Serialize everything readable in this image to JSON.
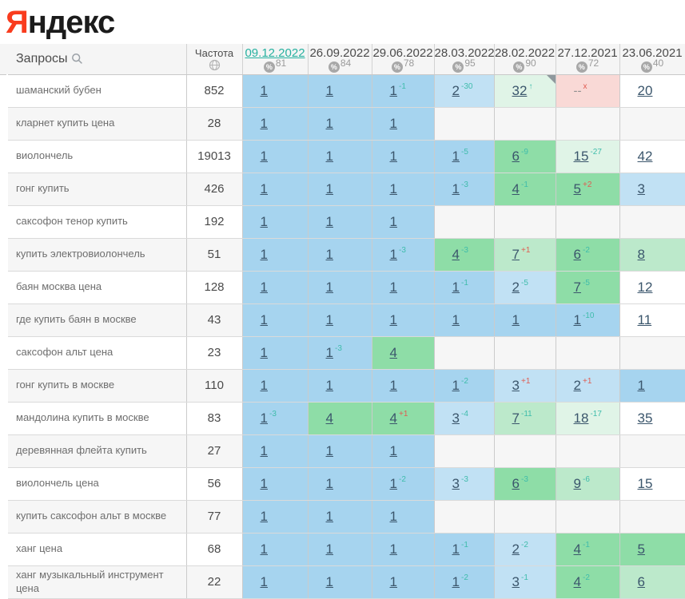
{
  "logo": {
    "first_letter": "Я",
    "rest": "ндекс"
  },
  "header": {
    "queries_label": "Запросы",
    "frequency_label": "Частота",
    "columns": [
      {
        "date": "09.12.2022",
        "quality": "81",
        "active": true
      },
      {
        "date": "26.09.2022",
        "quality": "84",
        "active": false
      },
      {
        "date": "29.06.2022",
        "quality": "78",
        "active": false
      },
      {
        "date": "28.03.2022",
        "quality": "95",
        "active": false
      },
      {
        "date": "28.02.2022",
        "quality": "90",
        "active": false
      },
      {
        "date": "27.12.2021",
        "quality": "72",
        "active": false
      },
      {
        "date": "23.06.2021",
        "quality": "40",
        "active": false
      }
    ]
  },
  "tones": {
    "b1": "#a6d4ef",
    "b2": "#c1e1f4",
    "g1": "#8edda7",
    "g2": "#bce9cb",
    "g3": "#e0f4e7",
    "w": "#ffffff",
    "e": "#f6f6f6",
    "r": "#f9d9d6"
  },
  "sup_colors": {
    "up": "#3fbcab",
    "down": "#e05c51"
  },
  "rows": [
    {
      "query": "шаманский бубен",
      "frequency": "852",
      "cells": [
        {
          "pos": "1",
          "tone": "b1"
        },
        {
          "pos": "1",
          "tone": "b1"
        },
        {
          "pos": "1",
          "tone": "b1",
          "sup": "-1",
          "dir": "up"
        },
        {
          "pos": "2",
          "tone": "b2",
          "sup": "-30",
          "dir": "up"
        },
        {
          "pos": "32",
          "tone": "g3",
          "sup": "↑",
          "dir": "up",
          "fold": true
        },
        {
          "pos": "--",
          "tone": "r",
          "sup": "x",
          "dir": "down",
          "static": true
        },
        {
          "pos": "20",
          "tone": "w"
        }
      ]
    },
    {
      "query": "кларнет купить цена",
      "frequency": "28",
      "cells": [
        {
          "pos": "1",
          "tone": "b1"
        },
        {
          "pos": "1",
          "tone": "b1"
        },
        {
          "pos": "1",
          "tone": "b1"
        },
        {
          "tone": "e"
        },
        {
          "tone": "e"
        },
        {
          "tone": "e"
        },
        {
          "tone": "e"
        }
      ]
    },
    {
      "query": "виолончель",
      "frequency": "19013",
      "cells": [
        {
          "pos": "1",
          "tone": "b1"
        },
        {
          "pos": "1",
          "tone": "b1"
        },
        {
          "pos": "1",
          "tone": "b1"
        },
        {
          "pos": "1",
          "tone": "b1",
          "sup": "-5",
          "dir": "up"
        },
        {
          "pos": "6",
          "tone": "g1",
          "sup": "-9",
          "dir": "up"
        },
        {
          "pos": "15",
          "tone": "g3",
          "sup": "-27",
          "dir": "up"
        },
        {
          "pos": "42",
          "tone": "w"
        }
      ]
    },
    {
      "query": "гонг купить",
      "frequency": "426",
      "cells": [
        {
          "pos": "1",
          "tone": "b1"
        },
        {
          "pos": "1",
          "tone": "b1"
        },
        {
          "pos": "1",
          "tone": "b1"
        },
        {
          "pos": "1",
          "tone": "b1",
          "sup": "-3",
          "dir": "up"
        },
        {
          "pos": "4",
          "tone": "g1",
          "sup": "-1",
          "dir": "up"
        },
        {
          "pos": "5",
          "tone": "g1",
          "sup": "+2",
          "dir": "down"
        },
        {
          "pos": "3",
          "tone": "b2"
        }
      ]
    },
    {
      "query": "саксофон тенор купить",
      "frequency": "192",
      "cells": [
        {
          "pos": "1",
          "tone": "b1"
        },
        {
          "pos": "1",
          "tone": "b1"
        },
        {
          "pos": "1",
          "tone": "b1"
        },
        {
          "tone": "e"
        },
        {
          "tone": "e"
        },
        {
          "tone": "e"
        },
        {
          "tone": "e"
        }
      ]
    },
    {
      "query": "купить электровиолончель",
      "frequency": "51",
      "cells": [
        {
          "pos": "1",
          "tone": "b1"
        },
        {
          "pos": "1",
          "tone": "b1"
        },
        {
          "pos": "1",
          "tone": "b1",
          "sup": "-3",
          "dir": "up"
        },
        {
          "pos": "4",
          "tone": "g1",
          "sup": "-3",
          "dir": "up"
        },
        {
          "pos": "7",
          "tone": "g2",
          "sup": "+1",
          "dir": "down"
        },
        {
          "pos": "6",
          "tone": "g1",
          "sup": "-2",
          "dir": "up"
        },
        {
          "pos": "8",
          "tone": "g2"
        }
      ]
    },
    {
      "query": "баян москва цена",
      "frequency": "128",
      "cells": [
        {
          "pos": "1",
          "tone": "b1"
        },
        {
          "pos": "1",
          "tone": "b1"
        },
        {
          "pos": "1",
          "tone": "b1"
        },
        {
          "pos": "1",
          "tone": "b1",
          "sup": "-1",
          "dir": "up"
        },
        {
          "pos": "2",
          "tone": "b2",
          "sup": "-5",
          "dir": "up"
        },
        {
          "pos": "7",
          "tone": "g1",
          "sup": "-5",
          "dir": "up"
        },
        {
          "pos": "12",
          "tone": "w"
        }
      ]
    },
    {
      "query": "где купить баян в москве",
      "frequency": "43",
      "cells": [
        {
          "pos": "1",
          "tone": "b1"
        },
        {
          "pos": "1",
          "tone": "b1"
        },
        {
          "pos": "1",
          "tone": "b1"
        },
        {
          "pos": "1",
          "tone": "b1"
        },
        {
          "pos": "1",
          "tone": "b1"
        },
        {
          "pos": "1",
          "tone": "b1",
          "sup": "-10",
          "dir": "up"
        },
        {
          "pos": "11",
          "tone": "w"
        }
      ]
    },
    {
      "query": "саксофон альт цена",
      "frequency": "23",
      "cells": [
        {
          "pos": "1",
          "tone": "b1"
        },
        {
          "pos": "1",
          "tone": "b1",
          "sup": "-3",
          "dir": "up"
        },
        {
          "pos": "4",
          "tone": "g1"
        },
        {
          "tone": "e"
        },
        {
          "tone": "e"
        },
        {
          "tone": "e"
        },
        {
          "tone": "e"
        }
      ]
    },
    {
      "query": "гонг купить в москве",
      "frequency": "110",
      "cells": [
        {
          "pos": "1",
          "tone": "b1"
        },
        {
          "pos": "1",
          "tone": "b1"
        },
        {
          "pos": "1",
          "tone": "b1"
        },
        {
          "pos": "1",
          "tone": "b1",
          "sup": "-2",
          "dir": "up"
        },
        {
          "pos": "3",
          "tone": "b2",
          "sup": "+1",
          "dir": "down"
        },
        {
          "pos": "2",
          "tone": "b2",
          "sup": "+1",
          "dir": "down"
        },
        {
          "pos": "1",
          "tone": "b1"
        }
      ]
    },
    {
      "query": "мандолина купить в москве",
      "frequency": "83",
      "cells": [
        {
          "pos": "1",
          "tone": "b1",
          "sup": "-3",
          "dir": "up"
        },
        {
          "pos": "4",
          "tone": "g1"
        },
        {
          "pos": "4",
          "tone": "g1",
          "sup": "+1",
          "dir": "down"
        },
        {
          "pos": "3",
          "tone": "b2",
          "sup": "-4",
          "dir": "up"
        },
        {
          "pos": "7",
          "tone": "g2",
          "sup": "-11",
          "dir": "up"
        },
        {
          "pos": "18",
          "tone": "g3",
          "sup": "-17",
          "dir": "up"
        },
        {
          "pos": "35",
          "tone": "w"
        }
      ]
    },
    {
      "query": "деревянная флейта купить",
      "frequency": "27",
      "cells": [
        {
          "pos": "1",
          "tone": "b1"
        },
        {
          "pos": "1",
          "tone": "b1"
        },
        {
          "pos": "1",
          "tone": "b1"
        },
        {
          "tone": "e"
        },
        {
          "tone": "e"
        },
        {
          "tone": "e"
        },
        {
          "tone": "e"
        }
      ]
    },
    {
      "query": "виолончель цена",
      "frequency": "56",
      "cells": [
        {
          "pos": "1",
          "tone": "b1"
        },
        {
          "pos": "1",
          "tone": "b1"
        },
        {
          "pos": "1",
          "tone": "b1",
          "sup": "-2",
          "dir": "up"
        },
        {
          "pos": "3",
          "tone": "b2",
          "sup": "-3",
          "dir": "up"
        },
        {
          "pos": "6",
          "tone": "g1",
          "sup": "-3",
          "dir": "up"
        },
        {
          "pos": "9",
          "tone": "g2",
          "sup": "-6",
          "dir": "up"
        },
        {
          "pos": "15",
          "tone": "w"
        }
      ]
    },
    {
      "query": "купить саксофон альт в москве",
      "frequency": "77",
      "cells": [
        {
          "pos": "1",
          "tone": "b1"
        },
        {
          "pos": "1",
          "tone": "b1"
        },
        {
          "pos": "1",
          "tone": "b1"
        },
        {
          "tone": "e"
        },
        {
          "tone": "e"
        },
        {
          "tone": "e"
        },
        {
          "tone": "e"
        }
      ]
    },
    {
      "query": "ханг цена",
      "frequency": "68",
      "cells": [
        {
          "pos": "1",
          "tone": "b1"
        },
        {
          "pos": "1",
          "tone": "b1"
        },
        {
          "pos": "1",
          "tone": "b1"
        },
        {
          "pos": "1",
          "tone": "b1",
          "sup": "-1",
          "dir": "up"
        },
        {
          "pos": "2",
          "tone": "b2",
          "sup": "-2",
          "dir": "up"
        },
        {
          "pos": "4",
          "tone": "g1",
          "sup": "-1",
          "dir": "up"
        },
        {
          "pos": "5",
          "tone": "g1"
        }
      ]
    },
    {
      "query": "ханг музыкальный инструмент цена",
      "frequency": "22",
      "cells": [
        {
          "pos": "1",
          "tone": "b1"
        },
        {
          "pos": "1",
          "tone": "b1"
        },
        {
          "pos": "1",
          "tone": "b1"
        },
        {
          "pos": "1",
          "tone": "b1",
          "sup": "-2",
          "dir": "up"
        },
        {
          "pos": "3",
          "tone": "b2",
          "sup": "-1",
          "dir": "up"
        },
        {
          "pos": "4",
          "tone": "g1",
          "sup": "-2",
          "dir": "up"
        },
        {
          "pos": "6",
          "tone": "g2"
        }
      ]
    }
  ],
  "peek_row_tones": [
    "b1",
    "b1",
    "b1",
    "b2",
    "g1",
    "g1",
    "b2"
  ]
}
